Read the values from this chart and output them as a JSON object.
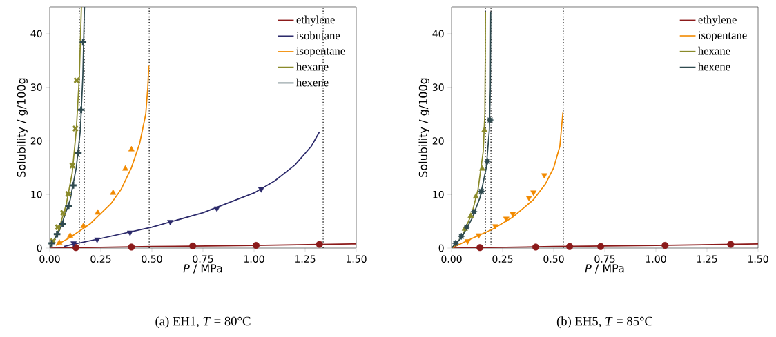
{
  "chart_data": [
    {
      "type": "line",
      "subtitle": "(a) EH1, *T* = 80°C",
      "xlabel": "*P* / MPa",
      "ylabel": "Solubility / g/100g",
      "xlim": [
        0,
        1.5
      ],
      "ylim": [
        0,
        45
      ],
      "xticks": [
        {
          "value": 0,
          "label": "0.00"
        },
        {
          "value": 0.25,
          "label": "0.25"
        },
        {
          "value": 0.5,
          "label": "0.50"
        },
        {
          "value": 0.75,
          "label": "0.75"
        },
        {
          "value": 1.0,
          "label": "1.00"
        },
        {
          "value": 1.25,
          "label": "1.25"
        },
        {
          "value": 1.5,
          "label": "1.50"
        }
      ],
      "yticks": [
        0,
        10,
        20,
        30,
        40
      ],
      "legend": "top right",
      "ref_lines": [
        {
          "axis": "x",
          "value": 0.145,
          "color": "#222222",
          "line_style": "dotted"
        },
        {
          "axis": "x",
          "value": 0.169,
          "color": "#222222",
          "line_style": "dotted"
        },
        {
          "axis": "x",
          "value": 0.487,
          "color": "#222222",
          "line_style": "dotted"
        },
        {
          "axis": "x",
          "value": 1.338,
          "color": "#222222",
          "line_style": "dotted"
        }
      ],
      "series": [
        {
          "name": "ethylene",
          "color": "#8b1a1a",
          "x": [
            0,
            0.5,
            1.0,
            1.5
          ],
          "values": [
            0,
            0.3,
            0.5,
            0.8
          ]
        },
        {
          "name": "isobutane",
          "color": "#2c2a6b",
          "x": [
            0.07,
            0.1,
            0.25,
            0.5,
            0.75,
            1.0,
            1.1,
            1.2,
            1.28,
            1.32
          ],
          "values": [
            0.3,
            0.6,
            1.8,
            3.9,
            6.6,
            10.3,
            12.5,
            15.5,
            19,
            21.7
          ]
        },
        {
          "name": "isopentane",
          "color": "#f28a00",
          "x": [
            0.03,
            0.1,
            0.2,
            0.3,
            0.35,
            0.4,
            0.44,
            0.47,
            0.48,
            0.485
          ],
          "values": [
            0.5,
            2.0,
            4.6,
            8.3,
            11,
            15,
            19.5,
            25,
            30,
            34
          ]
        },
        {
          "name": "hexane",
          "color": "#8a8a2a",
          "x": [
            0,
            0.04,
            0.08,
            0.11,
            0.13,
            0.145,
            0.155
          ],
          "values": [
            0,
            3,
            8,
            14,
            22,
            32,
            45
          ]
        },
        {
          "name": "hexene",
          "color": "#2f4a4f",
          "x": [
            0,
            0.05,
            0.1,
            0.13,
            0.15,
            0.162,
            0.17
          ],
          "values": [
            0,
            3.5,
            9,
            15,
            22,
            32,
            45
          ]
        },
        {
          "type": "scatter",
          "marker": "circle",
          "color": "#8b1a1a",
          "x": [
            0.128,
            0.4,
            0.7,
            1.01,
            1.32
          ],
          "values": [
            0.1,
            0.2,
            0.4,
            0.5,
            0.7
          ]
        },
        {
          "type": "scatter",
          "marker": "triangle_down",
          "color": "#2c2a6b",
          "x": [
            0.117,
            0.232,
            0.393,
            0.59,
            0.818,
            1.035
          ],
          "values": [
            0.9,
            1.6,
            2.9,
            4.9,
            7.4,
            11.0
          ]
        },
        {
          "type": "scatter",
          "marker": "triangle",
          "color": "#f28a00",
          "x": [
            0.047,
            0.1,
            0.165,
            0.235,
            0.31,
            0.37,
            0.4
          ],
          "values": [
            1.0,
            2.3,
            4.1,
            6.6,
            10.3,
            14.8,
            18.4
          ]
        },
        {
          "type": "scatter",
          "marker": "cross",
          "color": "#8a8a2a",
          "x": [
            0.016,
            0.04,
            0.066,
            0.091,
            0.111,
            0.126,
            0.132
          ],
          "values": [
            1.3,
            3.9,
            6.6,
            10.1,
            15.4,
            22.3,
            31.3
          ]
        },
        {
          "type": "scatter",
          "marker": "plus",
          "color": "#2f4a4f",
          "x": [
            0.01,
            0.036,
            0.063,
            0.092,
            0.115,
            0.14,
            0.154,
            0.163
          ],
          "values": [
            0.9,
            2.6,
            4.5,
            7.9,
            11.7,
            17.7,
            25.8,
            38.4
          ]
        }
      ]
    },
    {
      "type": "line",
      "subtitle": "(b) EH5, *T* = 85°C",
      "xlabel": "*P* / MPa",
      "ylabel": "Solubility / g/100g",
      "xlim": [
        0,
        1.5
      ],
      "ylim": [
        0,
        45
      ],
      "xticks": [
        {
          "value": 0,
          "label": "0.00"
        },
        {
          "value": 0.25,
          "label": "0.25"
        },
        {
          "value": 0.5,
          "label": "0.50"
        },
        {
          "value": 0.75,
          "label": "0.75"
        },
        {
          "value": 1.0,
          "label": "1.00"
        },
        {
          "value": 1.25,
          "label": "1.25"
        },
        {
          "value": 1.5,
          "label": "1.50"
        }
      ],
      "yticks": [
        0,
        10,
        20,
        30,
        40
      ],
      "legend": "top right",
      "ref_lines": [
        {
          "axis": "x",
          "value": 0.166,
          "color": "#222222",
          "line_style": "dotted"
        },
        {
          "axis": "x",
          "value": 0.193,
          "color": "#222222",
          "line_style": "dotted"
        },
        {
          "axis": "x",
          "value": 0.547,
          "color": "#222222",
          "line_style": "dotted"
        }
      ],
      "series": [
        {
          "name": "ethylene",
          "color": "#8b1a1a",
          "x": [
            0,
            0.5,
            1.0,
            1.5
          ],
          "values": [
            0,
            0.3,
            0.5,
            0.8
          ]
        },
        {
          "name": "isopentane",
          "color": "#f28a00",
          "x": [
            0,
            0.1,
            0.2,
            0.3,
            0.4,
            0.46,
            0.5,
            0.53,
            0.545
          ],
          "values": [
            0,
            1.8,
            3.5,
            5.8,
            9,
            12,
            15,
            19,
            25.3
          ]
        },
        {
          "name": "hexane",
          "color": "#8a8a2a",
          "x": [
            0,
            0.05,
            0.1,
            0.13,
            0.155,
            0.163,
            0.165,
            0.166
          ],
          "values": [
            0,
            2,
            6.5,
            11,
            18,
            25,
            35,
            44
          ]
        },
        {
          "name": "hexene",
          "color": "#2f4a4f",
          "x": [
            0,
            0.05,
            0.1,
            0.14,
            0.17,
            0.185,
            0.19,
            0.192
          ],
          "values": [
            0,
            2,
            5.5,
            9.5,
            15,
            22,
            30,
            44
          ]
        },
        {
          "type": "scatter",
          "marker": "circle",
          "color": "#8b1a1a",
          "x": [
            0.139,
            0.412,
            0.578,
            0.73,
            1.045,
            1.366
          ],
          "values": [
            0.1,
            0.2,
            0.3,
            0.3,
            0.5,
            0.7
          ]
        },
        {
          "type": "scatter",
          "marker": "triangle_down",
          "color": "#f28a00",
          "x": [
            0.079,
            0.133,
            0.214,
            0.268,
            0.3,
            0.379,
            0.401,
            0.454
          ],
          "values": [
            1.3,
            2.4,
            4.1,
            5.5,
            6.4,
            9.4,
            10.4,
            13.6
          ]
        },
        {
          "type": "scatter",
          "marker": "triangle",
          "color": "#8a8a2a",
          "x": [
            0.065,
            0.094,
            0.119,
            0.15,
            0.161
          ],
          "values": [
            3.6,
            6.0,
            9.6,
            14.8,
            22.0
          ]
        },
        {
          "type": "scatter",
          "marker": "star",
          "color": "#2f4a4f",
          "x": [
            0.02,
            0.048,
            0.074,
            0.11,
            0.146,
            0.176,
            0.189
          ],
          "values": [
            0.9,
            2.2,
            3.9,
            6.8,
            10.6,
            16.2,
            23.9
          ]
        }
      ]
    }
  ]
}
